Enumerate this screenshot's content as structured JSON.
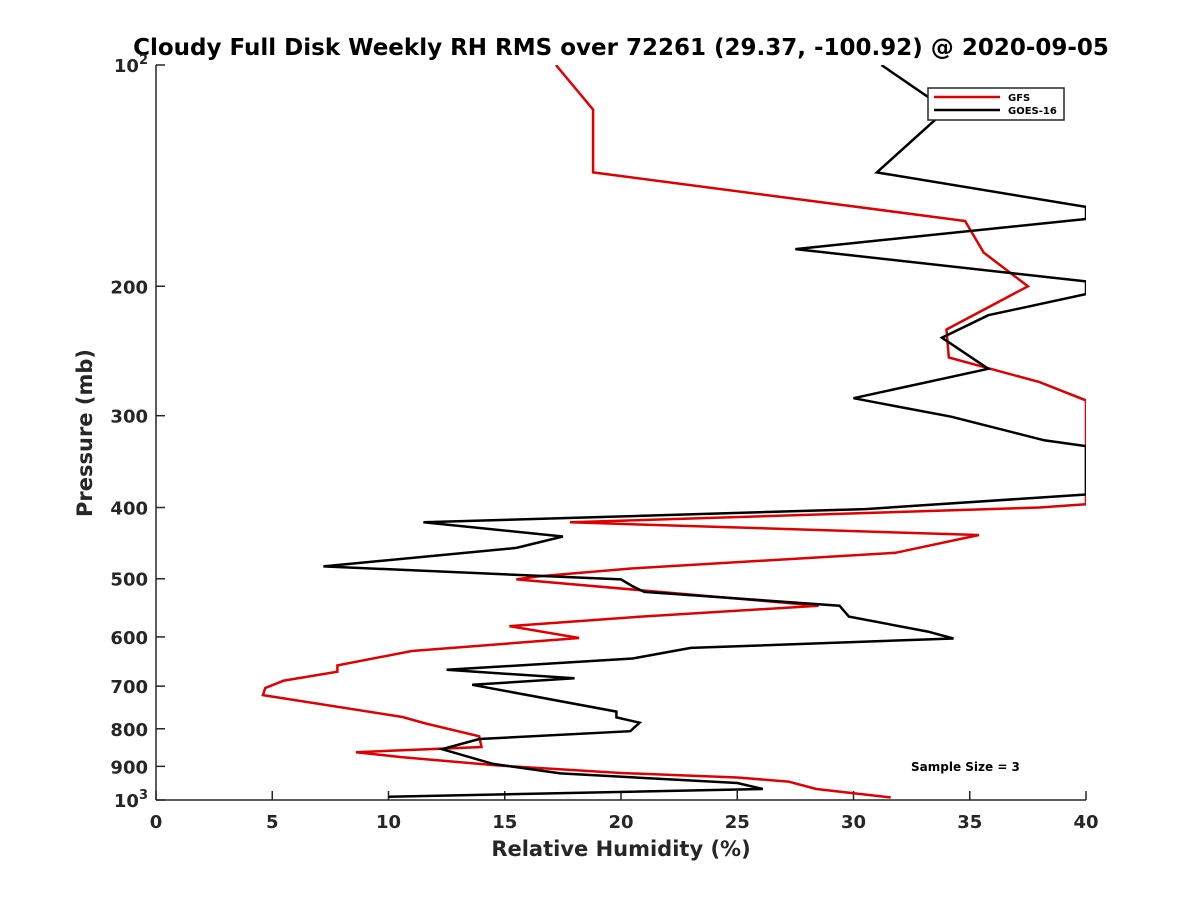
{
  "chart_data": {
    "type": "line",
    "title": "Cloudy Full Disk Weekly RH RMS over 72261 (29.37, -100.92) @ 2020-09-05",
    "xlabel": "Relative Humidity (%)",
    "ylabel": "Pressure (mb)",
    "xlim": [
      0,
      40
    ],
    "ylim": [
      100,
      1000
    ],
    "y_scale": "log",
    "y_reversed": true,
    "grid": false,
    "legend_position": "top-right",
    "x_ticks": [
      0,
      5,
      10,
      15,
      20,
      25,
      30,
      35,
      40
    ],
    "x_tick_labels": [
      "0",
      "5",
      "10",
      "15",
      "20",
      "25",
      "30",
      "35",
      "40"
    ],
    "y_ticks": [
      100,
      200,
      300,
      400,
      500,
      600,
      700,
      800,
      900,
      1000
    ],
    "y_tick_labels": [
      {
        "base": "10",
        "exp": "2"
      },
      {
        "base": "200",
        "exp": ""
      },
      {
        "base": "300",
        "exp": ""
      },
      {
        "base": "400",
        "exp": ""
      },
      {
        "base": "500",
        "exp": ""
      },
      {
        "base": "600",
        "exp": ""
      },
      {
        "base": "700",
        "exp": ""
      },
      {
        "base": "800",
        "exp": ""
      },
      {
        "base": "900",
        "exp": ""
      },
      {
        "base": "10",
        "exp": "3"
      }
    ],
    "annotation": "Sample Size = 3",
    "series": [
      {
        "name": "GFS",
        "color": "#e00000",
        "points": [
          [
            17.2,
            100
          ],
          [
            18.8,
            115
          ],
          [
            18.8,
            140
          ],
          [
            34.8,
            163
          ],
          [
            35.6,
            180
          ],
          [
            37.5,
            200
          ],
          [
            34.0,
            229
          ],
          [
            34.1,
            250
          ],
          [
            38.0,
            270
          ],
          [
            40.0,
            286
          ],
          [
            40.0,
            396
          ],
          [
            38.0,
            400
          ],
          [
            17.8,
            419
          ],
          [
            35.4,
            436
          ],
          [
            31.8,
            461
          ],
          [
            20.5,
            484
          ],
          [
            16.5,
            496
          ],
          [
            15.5,
            501
          ],
          [
            28.5,
            544
          ],
          [
            20.5,
            564
          ],
          [
            15.2,
            580
          ],
          [
            18.2,
            602
          ],
          [
            11.0,
            627
          ],
          [
            7.8,
            656
          ],
          [
            7.8,
            669
          ],
          [
            5.5,
            688
          ],
          [
            4.7,
            704
          ],
          [
            4.6,
            720
          ],
          [
            10.6,
            771
          ],
          [
            11.6,
            787
          ],
          [
            13.9,
            819
          ],
          [
            14.0,
            847
          ],
          [
            8.6,
            861
          ],
          [
            10.5,
            874
          ],
          [
            14.6,
            897
          ],
          [
            20.0,
            919
          ],
          [
            25.0,
            932
          ],
          [
            27.2,
            944
          ],
          [
            28.4,
            966
          ],
          [
            31.6,
            992
          ]
        ]
      },
      {
        "name": "GOES-16",
        "color": "#000000",
        "points": [
          [
            31.2,
            100
          ],
          [
            34.0,
            115
          ],
          [
            31.0,
            140
          ],
          [
            40.0,
            156
          ],
          [
            40.0,
            162
          ],
          [
            27.5,
            178
          ],
          [
            40.0,
            197
          ],
          [
            40.0,
            205
          ],
          [
            35.8,
            219
          ],
          [
            33.8,
            235
          ],
          [
            35.8,
            259
          ],
          [
            30.0,
            284
          ],
          [
            34.2,
            301
          ],
          [
            38.2,
            324
          ],
          [
            40.0,
            330
          ],
          [
            40.0,
            384
          ],
          [
            30.5,
            402
          ],
          [
            11.5,
            419
          ],
          [
            17.5,
            438
          ],
          [
            15.5,
            454
          ],
          [
            7.2,
            481
          ],
          [
            20.0,
            501
          ],
          [
            20.5,
            512
          ],
          [
            21.0,
            521
          ],
          [
            29.4,
            544
          ],
          [
            29.8,
            563
          ],
          [
            33.2,
            590
          ],
          [
            34.3,
            603
          ],
          [
            23.0,
            621
          ],
          [
            20.5,
            642
          ],
          [
            12.5,
            665
          ],
          [
            18.0,
            683
          ],
          [
            13.6,
            697
          ],
          [
            19.8,
            758
          ],
          [
            19.8,
            772
          ],
          [
            20.8,
            785
          ],
          [
            20.4,
            806
          ],
          [
            13.9,
            826
          ],
          [
            12.3,
            853
          ],
          [
            14.5,
            893
          ],
          [
            17.4,
            920
          ],
          [
            25.0,
            948
          ],
          [
            26.1,
            966
          ],
          [
            10.0,
            990
          ]
        ]
      }
    ]
  }
}
